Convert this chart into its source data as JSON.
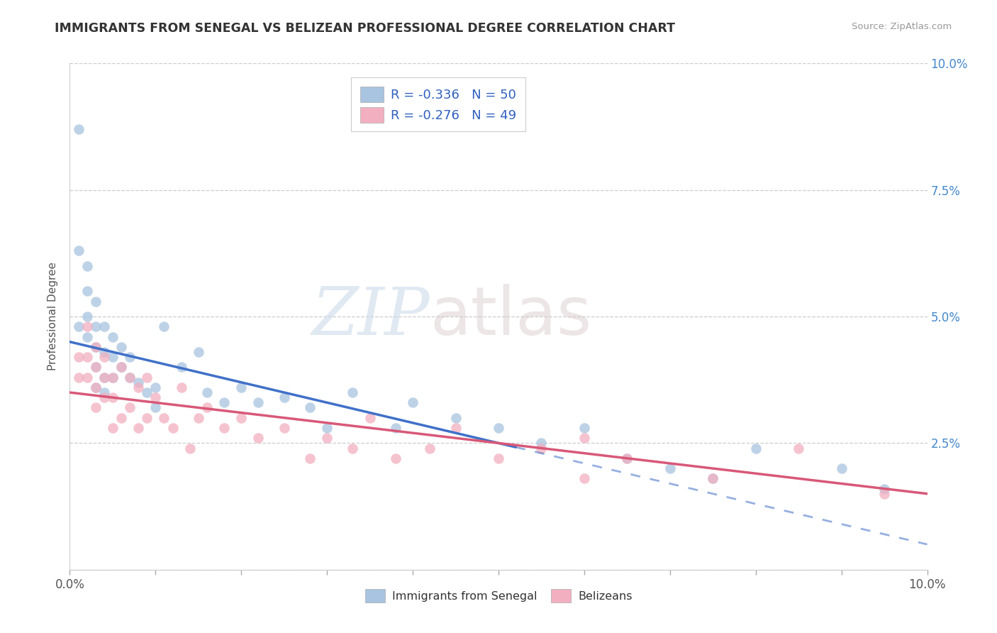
{
  "title": "IMMIGRANTS FROM SENEGAL VS BELIZEAN PROFESSIONAL DEGREE CORRELATION CHART",
  "source": "Source: ZipAtlas.com",
  "ylabel": "Professional Degree",
  "xlim": [
    0.0,
    0.1
  ],
  "ylim": [
    0.0,
    0.1
  ],
  "xticks": [
    0.0,
    0.01,
    0.02,
    0.03,
    0.04,
    0.05,
    0.06,
    0.07,
    0.08,
    0.09,
    0.1
  ],
  "yticks": [
    0.0,
    0.025,
    0.05,
    0.075,
    0.1
  ],
  "xticklabels": [
    "0.0%",
    "",
    "",
    "",
    "",
    "",
    "",
    "",
    "",
    "",
    "10.0%"
  ],
  "yticklabels_right": [
    "",
    "2.5%",
    "5.0%",
    "7.5%",
    "10.0%"
  ],
  "legend_text1": "R = -0.336   N = 50",
  "legend_text2": "R = -0.276   N = 49",
  "color_senegal": "#a8c4e0",
  "color_belize": "#f2afc0",
  "line_color_senegal": "#4070c8",
  "line_color_belize": "#d85878",
  "watermark_zip": "ZIP",
  "watermark_atlas": "atlas",
  "background_color": "#ffffff",
  "grid_color": "#cccccc",
  "senegal_x": [
    0.001,
    0.001,
    0.001,
    0.002,
    0.002,
    0.002,
    0.002,
    0.003,
    0.003,
    0.003,
    0.003,
    0.003,
    0.004,
    0.004,
    0.004,
    0.004,
    0.005,
    0.005,
    0.005,
    0.006,
    0.006,
    0.007,
    0.007,
    0.008,
    0.009,
    0.01,
    0.01,
    0.011,
    0.013,
    0.015,
    0.016,
    0.018,
    0.02,
    0.022,
    0.025,
    0.028,
    0.03,
    0.033,
    0.038,
    0.04,
    0.045,
    0.05,
    0.055,
    0.06,
    0.065,
    0.07,
    0.075,
    0.08,
    0.09,
    0.095
  ],
  "senegal_y": [
    0.087,
    0.063,
    0.048,
    0.06,
    0.055,
    0.05,
    0.046,
    0.053,
    0.048,
    0.044,
    0.04,
    0.036,
    0.048,
    0.043,
    0.038,
    0.035,
    0.046,
    0.042,
    0.038,
    0.044,
    0.04,
    0.042,
    0.038,
    0.037,
    0.035,
    0.036,
    0.032,
    0.048,
    0.04,
    0.043,
    0.035,
    0.033,
    0.036,
    0.033,
    0.034,
    0.032,
    0.028,
    0.035,
    0.028,
    0.033,
    0.03,
    0.028,
    0.025,
    0.028,
    0.022,
    0.02,
    0.018,
    0.024,
    0.02,
    0.016
  ],
  "belize_x": [
    0.001,
    0.001,
    0.002,
    0.002,
    0.002,
    0.003,
    0.003,
    0.003,
    0.003,
    0.004,
    0.004,
    0.004,
    0.005,
    0.005,
    0.005,
    0.006,
    0.006,
    0.007,
    0.007,
    0.008,
    0.008,
    0.009,
    0.009,
    0.01,
    0.011,
    0.012,
    0.013,
    0.014,
    0.015,
    0.016,
    0.018,
    0.02,
    0.022,
    0.025,
    0.028,
    0.03,
    0.033,
    0.035,
    0.038,
    0.042,
    0.045,
    0.05,
    0.055,
    0.06,
    0.065,
    0.075,
    0.06,
    0.085,
    0.095
  ],
  "belize_y": [
    0.042,
    0.038,
    0.048,
    0.042,
    0.038,
    0.044,
    0.04,
    0.036,
    0.032,
    0.042,
    0.038,
    0.034,
    0.038,
    0.034,
    0.028,
    0.04,
    0.03,
    0.038,
    0.032,
    0.036,
    0.028,
    0.038,
    0.03,
    0.034,
    0.03,
    0.028,
    0.036,
    0.024,
    0.03,
    0.032,
    0.028,
    0.03,
    0.026,
    0.028,
    0.022,
    0.026,
    0.024,
    0.03,
    0.022,
    0.024,
    0.028,
    0.022,
    0.024,
    0.018,
    0.022,
    0.018,
    0.026,
    0.024,
    0.015
  ]
}
